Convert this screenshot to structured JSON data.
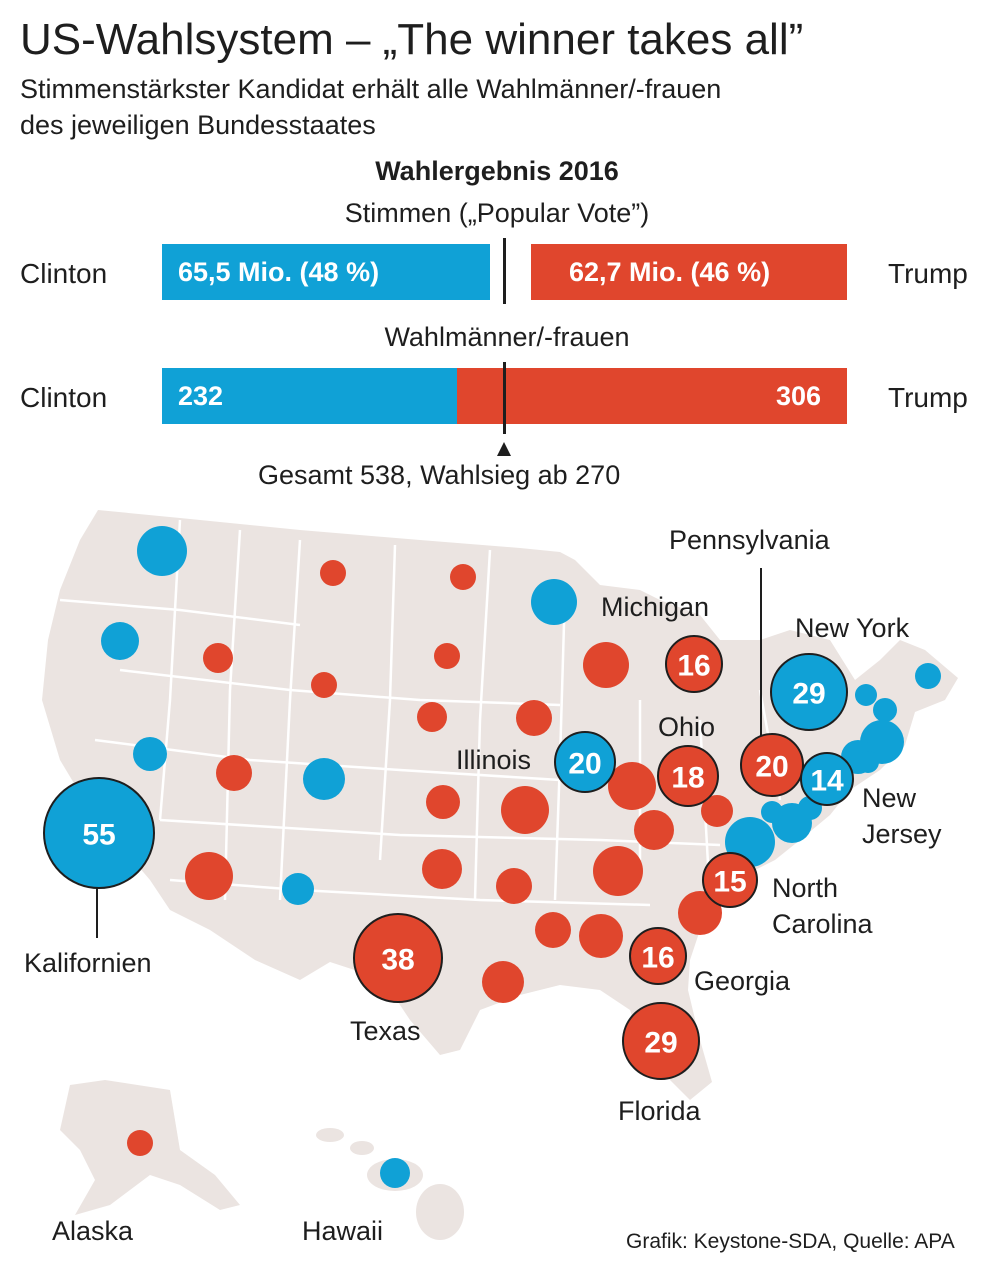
{
  "header": {
    "title": "US-Wahlsystem – „The winner takes all”",
    "subtitle_line1": "Stimmenstärkster Kandidat erhält alle Wahlmänner/-frauen",
    "subtitle_line2": "des jeweiligen Bundesstaates"
  },
  "results": {
    "title": "Wahlergebnis 2016",
    "popular_vote": {
      "title": "Stimmen („Popular Vote”)",
      "clinton_name": "Clinton",
      "trump_name": "Trump",
      "clinton_label": "65,5 Mio. (48 %)",
      "trump_label": "62,7 Mio. (46 %)",
      "clinton_votes_mio": 65.5,
      "trump_votes_mio": 62.7,
      "clinton_pct": 48,
      "trump_pct": 46
    },
    "electoral": {
      "title": "Wahlmänner/-frauen",
      "clinton_name": "Clinton",
      "trump_name": "Trump",
      "clinton": 232,
      "trump": 306,
      "clinton_label": "232",
      "trump_label": "306",
      "total_label": "Gesamt 538, Wahlsieg ab 270",
      "total": 538,
      "majority": 270
    }
  },
  "colors": {
    "clinton": "#10a1d6",
    "trump": "#e0462d",
    "land": "#ebe4e1",
    "borders": "#ffffff",
    "text": "#1e1e1e"
  },
  "map": {
    "labeled_states": [
      {
        "id": "california",
        "name": "Kalifornien",
        "votes": 55,
        "winner": "clinton"
      },
      {
        "id": "texas",
        "name": "Texas",
        "votes": 38,
        "winner": "trump"
      },
      {
        "id": "florida",
        "name": "Florida",
        "votes": 29,
        "winner": "trump"
      },
      {
        "id": "new-york",
        "name": "New York",
        "votes": 29,
        "winner": "clinton"
      },
      {
        "id": "illinois",
        "name": "Illinois",
        "votes": 20,
        "winner": "clinton"
      },
      {
        "id": "pennsylvania",
        "name": "Pennsylvania",
        "votes": 20,
        "winner": "trump"
      },
      {
        "id": "ohio",
        "name": "Ohio",
        "votes": 18,
        "winner": "trump"
      },
      {
        "id": "michigan",
        "name": "Michigan",
        "votes": 16,
        "winner": "trump"
      },
      {
        "id": "georgia",
        "name": "Georgia",
        "votes": 16,
        "winner": "trump"
      },
      {
        "id": "north-carolina",
        "name": "North Carolina",
        "votes": 15,
        "winner": "trump"
      },
      {
        "id": "new-jersey",
        "name": "New Jersey",
        "votes": 14,
        "winner": "clinton"
      }
    ],
    "label_texts": {
      "california": "Kalifornien",
      "texas": "Texas",
      "florida": "Florida",
      "new_york": "New York",
      "illinois": "Illinois",
      "pennsylvania": "Pennsylvania",
      "ohio": "Ohio",
      "michigan": "Michigan",
      "georgia": "Georgia",
      "north_carolina_1": "North",
      "north_carolina_2": "Carolina",
      "new_jersey_1": "New",
      "new_jersey_2": "Jersey",
      "alaska": "Alaska",
      "hawaii": "Hawaii"
    },
    "bubble_values": {
      "california": "55",
      "texas": "38",
      "florida": "29",
      "new_york": "29",
      "illinois": "20",
      "pennsylvania": "20",
      "ohio": "18",
      "michigan": "16",
      "georgia": "16",
      "north_carolina": "15",
      "new_jersey": "14"
    }
  },
  "footer": {
    "source": "Grafik: Keystone-SDA, Quelle: APA"
  }
}
